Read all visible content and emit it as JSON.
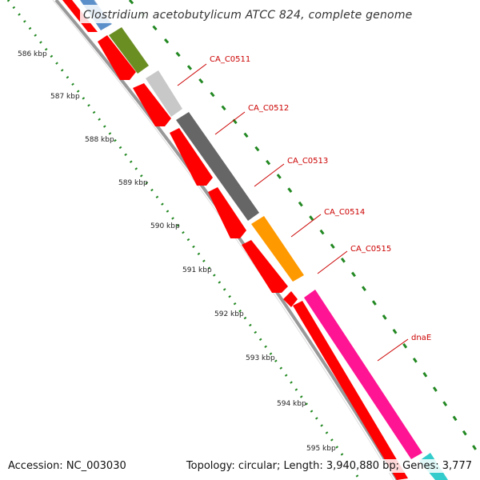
{
  "title": "Clostridium acetobutylicum ATCC 824, complete genome",
  "accession": "Accession: NC_003030",
  "summary": "Topology: circular; Length: 3,940,880 bp; Genes: 3,777",
  "ruler_ticks": [
    {
      "label": "586 kbp"
    },
    {
      "label": "587 kbp"
    },
    {
      "label": "588 kbp"
    },
    {
      "label": "589 kbp"
    },
    {
      "label": "590 kbp"
    },
    {
      "label": "591 kbp"
    },
    {
      "label": "592 kbp"
    },
    {
      "label": "593 kbp"
    },
    {
      "label": "594 kbp"
    },
    {
      "label": "595 kbp"
    }
  ],
  "gene_labels": [
    {
      "name": "CA_C0511"
    },
    {
      "name": "CA_C0512"
    },
    {
      "name": "CA_C0513"
    },
    {
      "name": "CA_C0514"
    },
    {
      "name": "CA_C0515"
    },
    {
      "name": "dnaE"
    }
  ],
  "colors": {
    "cds": "#ff0000",
    "ruler": "#228822",
    "backbone": "#888888",
    "label": "#cc0000",
    "gene_steelblue": "#5b8fc9",
    "gene_olive": "#6b8e23",
    "gene_lightgray": "#c8c8c8",
    "gene_darkgray": "#666666",
    "gene_orange": "#ff9900",
    "gene_pink": "#ff1493",
    "gene_cyan": "#33cccc"
  }
}
